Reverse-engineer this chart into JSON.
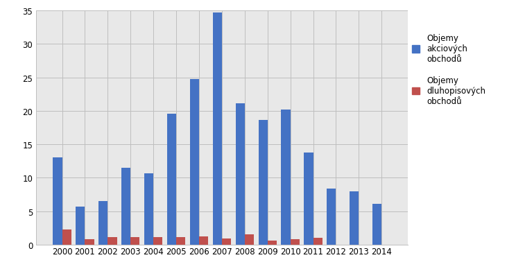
{
  "years": [
    "2000",
    "2001",
    "2002",
    "2003",
    "2004",
    "2005",
    "2006",
    "2007",
    "2008",
    "2009",
    "2010",
    "2011",
    "2012",
    "2013",
    "2014"
  ],
  "akciove": [
    13.0,
    5.7,
    6.5,
    11.5,
    10.6,
    19.6,
    24.7,
    34.7,
    21.1,
    18.6,
    20.2,
    13.8,
    8.4,
    8.0,
    6.1
  ],
  "dluhopisove": [
    2.3,
    0.8,
    1.1,
    1.1,
    1.1,
    1.1,
    1.2,
    0.9,
    1.5,
    0.6,
    0.8,
    1.0,
    0.0,
    0.0,
    0.0
  ],
  "color_akciove": "#4472C4",
  "color_dluhopisove": "#C0504D",
  "legend_akciove": "Objemy\nakciových\nobchodů",
  "legend_dluhopisove": "Objemy\ndluhopisových\nobchodů",
  "ylim": [
    0,
    35
  ],
  "yticks": [
    0,
    5,
    10,
    15,
    20,
    25,
    30,
    35
  ],
  "plot_background": "#E8E8E8",
  "figure_background": "#FFFFFF",
  "bar_width": 0.4,
  "grid_color": "#BEBEBE",
  "figsize": [
    7.44,
    4.02
  ]
}
